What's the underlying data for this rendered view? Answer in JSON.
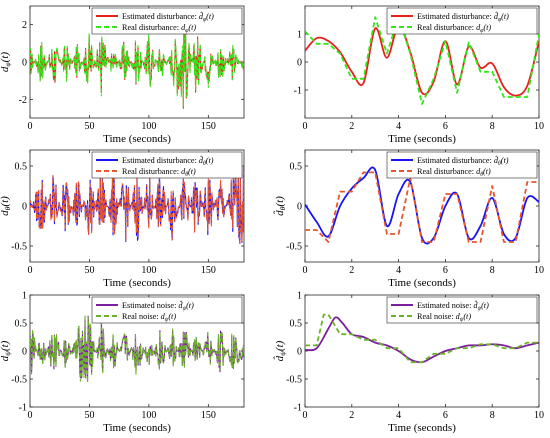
{
  "figure": {
    "colors": {
      "red": "#e8201b",
      "green": "#33e61a",
      "blue": "#1a14f0",
      "orange": "#e8542c",
      "purple": "#7d1e9e",
      "olive": "#6cb22a"
    },
    "panels": [
      {
        "id": "phi-full",
        "ylabel": "d̂φ(t)",
        "xlabel": "Time (seconds)",
        "xlim": [
          0,
          180
        ],
        "ylim": [
          -3,
          3
        ],
        "xticks": [
          0,
          50,
          100,
          150
        ],
        "yticks": [
          -2,
          0,
          2
        ],
        "legend": [
          "Estimated disturbance: d̂φ(t)",
          "Real disturbance: dφ(t)"
        ],
        "series": [
          {
            "name": "Estimated disturbance: d̂φ(t)",
            "color": "#e8201b",
            "dash": "solid"
          },
          {
            "name": "Real disturbance: dφ(t)",
            "color": "#33e61a",
            "dash": "dash"
          }
        ]
      },
      {
        "id": "phi-zoom",
        "ylabel": "",
        "xlabel": "Time (seconds)",
        "xlim": [
          0,
          10
        ],
        "ylim": [
          -2,
          2
        ],
        "xticks": [
          0,
          2,
          4,
          6,
          8,
          10
        ],
        "yticks": [
          -1,
          0,
          1
        ],
        "legend": [
          "Estimated disturbance: d̂φ(t)",
          "Real disturbance: dφ(t)"
        ],
        "series": [
          {
            "name": "Estimated disturbance: d̂φ(t)",
            "color": "#e8201b",
            "dash": "solid"
          },
          {
            "name": "Real disturbance: dφ(t)",
            "color": "#33e61a",
            "dash": "dash"
          }
        ]
      },
      {
        "id": "theta-full",
        "ylabel": "d̂θ(t)",
        "xlabel": "Time (seconds)",
        "xlim": [
          0,
          180
        ],
        "ylim": [
          -0.7,
          0.7
        ],
        "xticks": [
          0,
          50,
          100,
          150
        ],
        "yticks": [
          -0.5,
          0,
          0.5
        ],
        "legend": [
          "Estimated disturbance: d̂θ(t)",
          "Real disturbance: dθ(t)"
        ],
        "series": [
          {
            "name": "Estimated disturbance: d̂θ(t)",
            "color": "#1a14f0",
            "dash": "solid"
          },
          {
            "name": "Real disturbance: dθ(t)",
            "color": "#e8542c",
            "dash": "dash"
          }
        ]
      },
      {
        "id": "theta-zoom",
        "ylabel": "d̂θ(t)",
        "xlabel": "Time (seconds)",
        "xlim": [
          0,
          10
        ],
        "ylim": [
          -0.7,
          0.7
        ],
        "xticks": [
          0,
          2,
          4,
          6,
          8,
          10
        ],
        "yticks": [
          -0.5,
          0,
          0.5
        ],
        "legend": [
          "Estimated disturbance: d̂θ(t)",
          "Real disturbance: dθ(t)"
        ],
        "series": [
          {
            "name": "Estimated disturbance: d̂θ(t)",
            "color": "#1a14f0",
            "dash": "solid"
          },
          {
            "name": "Real disturbance: dθ(t)",
            "color": "#e8542c",
            "dash": "dash"
          }
        ]
      },
      {
        "id": "psi-full",
        "ylabel": "d̂ψ(t)",
        "xlabel": "Time (seconds)",
        "xlim": [
          0,
          180
        ],
        "ylim": [
          -1,
          1
        ],
        "xticks": [
          0,
          50,
          100,
          150
        ],
        "yticks": [
          -1,
          -0.5,
          0,
          0.5,
          1
        ],
        "legend": [
          "Estimated noise: d̂ψ(t)",
          "Real noise: dψ(t)"
        ],
        "series": [
          {
            "name": "Estimated noise: d̂ψ(t)",
            "color": "#7d1e9e",
            "dash": "solid"
          },
          {
            "name": "Real noise: dψ(t)",
            "color": "#6cb22a",
            "dash": "dash"
          }
        ]
      },
      {
        "id": "psi-zoom",
        "ylabel": "d̂ψ(t)",
        "xlabel": "Time (seconds)",
        "xlim": [
          0,
          10
        ],
        "ylim": [
          -1,
          1
        ],
        "xticks": [
          0,
          2,
          4,
          6,
          8,
          10
        ],
        "yticks": [
          -1,
          -0.5,
          0,
          0.5,
          1
        ],
        "legend": [
          "Estimated noise: d̂ψ(t)",
          "Real noise: dψ(t)"
        ],
        "series": [
          {
            "name": "Estimated noise: d̂ψ(t)",
            "color": "#7d1e9e",
            "dash": "solid"
          },
          {
            "name": "Real noise: dψ(t)",
            "color": "#6cb22a",
            "dash": "dash"
          }
        ]
      }
    ]
  },
  "chart_data": [
    {
      "type": "line",
      "ylabel": "d̂φ(t)",
      "xlabel": "Time (seconds)",
      "xlim": [
        0,
        180
      ],
      "ylim": [
        -3,
        3
      ],
      "series": [
        {
          "name": "Estimated disturbance: d̂φ(t)",
          "x": [
            0,
            10,
            20,
            30,
            40,
            50,
            60,
            70,
            80,
            90,
            100,
            110,
            120,
            130,
            140,
            150,
            160,
            170,
            180
          ],
          "y": [
            0.8,
            -1.2,
            1.4,
            -1.0,
            0.9,
            -1.5,
            1.7,
            -0.8,
            1.2,
            -1.3,
            1.5,
            -1.0,
            0.8,
            2.6,
            -1.8,
            1.2,
            -1.1,
            0.9,
            -0.5
          ]
        },
        {
          "name": "Real disturbance: dφ(t)",
          "x": [
            0,
            10,
            20,
            30,
            40,
            50,
            60,
            70,
            80,
            90,
            100,
            110,
            120,
            130,
            140,
            150,
            160,
            170,
            180
          ],
          "y": [
            0.9,
            -1.4,
            1.6,
            -1.2,
            1.0,
            -1.7,
            1.9,
            -1.0,
            1.4,
            -1.5,
            1.7,
            -1.2,
            1.0,
            2.9,
            -2.0,
            1.4,
            -1.3,
            1.1,
            -0.6
          ]
        }
      ]
    },
    {
      "type": "line",
      "xlabel": "Time (seconds)",
      "xlim": [
        0,
        10
      ],
      "ylim": [
        -2,
        2
      ],
      "series": [
        {
          "name": "Estimated disturbance: d̂φ(t)",
          "x": [
            0,
            0.5,
            1.0,
            1.5,
            2.0,
            2.5,
            3.0,
            3.5,
            4.0,
            4.5,
            5.0,
            5.5,
            6.0,
            6.5,
            7.0,
            7.5,
            8.0,
            8.5,
            9.0,
            9.5,
            10.0
          ],
          "y": [
            0.4,
            0.85,
            0.75,
            0.35,
            -0.35,
            -0.75,
            1.2,
            0.15,
            1.3,
            0.35,
            -1.1,
            -0.7,
            0.75,
            -0.8,
            0.55,
            -0.2,
            -0.05,
            -0.9,
            -1.2,
            -0.85,
            0.75
          ]
        },
        {
          "name": "Real disturbance: dφ(t)",
          "x": [
            0,
            0.5,
            1.0,
            1.5,
            2.0,
            2.5,
            3.0,
            3.5,
            4.0,
            4.5,
            5.0,
            5.5,
            6.0,
            6.5,
            7.0,
            7.5,
            8.0,
            8.5,
            9.0,
            9.5,
            10.0
          ],
          "y": [
            1.1,
            0.65,
            0.65,
            0.3,
            -0.6,
            -0.6,
            1.6,
            0.3,
            1.6,
            0.3,
            -1.5,
            -0.6,
            0.75,
            -1.1,
            0.7,
            -0.35,
            -0.35,
            -1.25,
            -1.25,
            -1.25,
            1.0
          ]
        }
      ]
    },
    {
      "type": "line",
      "ylabel": "d̂θ(t)",
      "xlabel": "Time (seconds)",
      "xlim": [
        0,
        180
      ],
      "ylim": [
        -0.7,
        0.7
      ],
      "series": [
        {
          "name": "Estimated disturbance: d̂θ(t)",
          "x": [
            0,
            10,
            20,
            30,
            40,
            50,
            60,
            70,
            80,
            90,
            100,
            110,
            120,
            130,
            140,
            150,
            160,
            170,
            180
          ],
          "y": [
            0.1,
            -0.4,
            0.45,
            -0.45,
            0.4,
            -0.45,
            0.45,
            -0.4,
            0.45,
            -0.45,
            0.4,
            -0.45,
            0.45,
            -0.4,
            0.45,
            -0.45,
            0.4,
            -0.4,
            -0.45
          ]
        },
        {
          "name": "Real disturbance: dθ(t)",
          "x": [
            0,
            10,
            20,
            30,
            40,
            50,
            60,
            70,
            80,
            90,
            100,
            110,
            120,
            130,
            140,
            150,
            160,
            170,
            180
          ],
          "y": [
            0.15,
            -0.45,
            0.5,
            -0.5,
            0.45,
            -0.5,
            0.5,
            -0.45,
            0.5,
            -0.5,
            0.45,
            -0.5,
            0.5,
            -0.45,
            0.5,
            -0.5,
            0.45,
            -0.45,
            -0.5
          ]
        }
      ]
    },
    {
      "type": "line",
      "ylabel": "d̂θ(t)",
      "xlabel": "Time (seconds)",
      "xlim": [
        0,
        10
      ],
      "ylim": [
        -0.7,
        0.7
      ],
      "series": [
        {
          "name": "Estimated disturbance: d̂θ(t)",
          "x": [
            0,
            0.5,
            1.0,
            1.5,
            2.0,
            2.5,
            3.0,
            3.5,
            4.0,
            4.5,
            5.0,
            5.5,
            6.0,
            6.5,
            7.0,
            7.5,
            8.0,
            8.5,
            9.0,
            9.5,
            10.0
          ],
          "y": [
            0.02,
            -0.2,
            -0.38,
            0.0,
            0.22,
            0.35,
            0.45,
            -0.25,
            0.15,
            0.3,
            -0.4,
            -0.4,
            0.0,
            0.15,
            -0.4,
            -0.25,
            0.1,
            -0.35,
            -0.4,
            0.1,
            0.05
          ]
        },
        {
          "name": "Real disturbance: dθ(t)",
          "x": [
            0,
            0.5,
            1.0,
            1.5,
            2.0,
            2.5,
            3.0,
            3.5,
            4.0,
            4.5,
            5.0,
            5.5,
            6.0,
            6.5,
            7.0,
            7.5,
            8.0,
            8.5,
            9.0,
            9.5,
            10.0
          ],
          "y": [
            -0.3,
            -0.3,
            -0.45,
            0.18,
            0.18,
            0.42,
            0.42,
            -0.35,
            -0.35,
            0.35,
            -0.45,
            -0.45,
            0.15,
            0.15,
            -0.45,
            -0.45,
            0.25,
            -0.45,
            -0.45,
            0.3,
            0.3
          ]
        }
      ]
    },
    {
      "type": "line",
      "ylabel": "d̂ψ(t)",
      "xlabel": "Time (seconds)",
      "xlim": [
        0,
        180
      ],
      "ylim": [
        -1,
        1
      ],
      "series": [
        {
          "name": "Estimated noise: d̂ψ(t)",
          "x": [
            0,
            10,
            20,
            30,
            40,
            50,
            60,
            70,
            80,
            90,
            100,
            110,
            120,
            130,
            140,
            150,
            160,
            170,
            180
          ],
          "y": [
            0.5,
            -0.35,
            0.45,
            -0.3,
            0.35,
            0.7,
            -0.5,
            0.4,
            -0.35,
            0.45,
            -0.3,
            0.4,
            -0.35,
            0.45,
            -0.3,
            0.35,
            -0.4,
            0.3,
            0.1
          ]
        },
        {
          "name": "Real noise: dψ(t)",
          "x": [
            0,
            10,
            20,
            30,
            40,
            50,
            60,
            70,
            80,
            90,
            100,
            110,
            120,
            130,
            140,
            150,
            160,
            170,
            180
          ],
          "y": [
            0.6,
            -0.4,
            0.5,
            -0.35,
            0.4,
            0.8,
            -0.55,
            0.45,
            -0.4,
            0.5,
            -0.35,
            0.45,
            -0.4,
            0.5,
            -0.35,
            0.4,
            -0.45,
            0.35,
            0.1
          ]
        }
      ]
    },
    {
      "type": "line",
      "ylabel": "d̂ψ(t)",
      "xlabel": "Time (seconds)",
      "xlim": [
        0,
        10
      ],
      "ylim": [
        -1,
        1
      ],
      "series": [
        {
          "name": "Estimated noise: d̂ψ(t)",
          "x": [
            0,
            0.5,
            1.0,
            1.3,
            1.6,
            2.0,
            2.5,
            3.0,
            3.5,
            4.0,
            4.5,
            5.0,
            5.5,
            6.0,
            6.5,
            7.0,
            7.5,
            8.0,
            8.5,
            9.0,
            9.5,
            10.0
          ],
          "y": [
            0.02,
            0.05,
            0.4,
            0.6,
            0.5,
            0.3,
            0.25,
            0.15,
            0.1,
            0.0,
            -0.15,
            -0.2,
            -0.1,
            0.0,
            0.05,
            0.1,
            0.1,
            0.12,
            0.1,
            0.05,
            0.1,
            0.15
          ]
        },
        {
          "name": "Real noise: dψ(t)",
          "x": [
            0,
            0.5,
            0.8,
            1.0,
            1.5,
            2.0,
            2.5,
            3.0,
            3.5,
            4.0,
            4.5,
            5.0,
            5.5,
            6.0,
            6.5,
            7.0,
            7.5,
            8.0,
            8.5,
            9.0,
            9.5,
            10.0
          ],
          "y": [
            0.1,
            0.1,
            0.65,
            0.65,
            0.3,
            0.3,
            0.2,
            0.2,
            0.05,
            0.05,
            -0.2,
            -0.2,
            -0.05,
            -0.05,
            0.05,
            0.05,
            0.12,
            0.12,
            0.05,
            0.05,
            0.15,
            0.15
          ]
        }
      ]
    }
  ]
}
